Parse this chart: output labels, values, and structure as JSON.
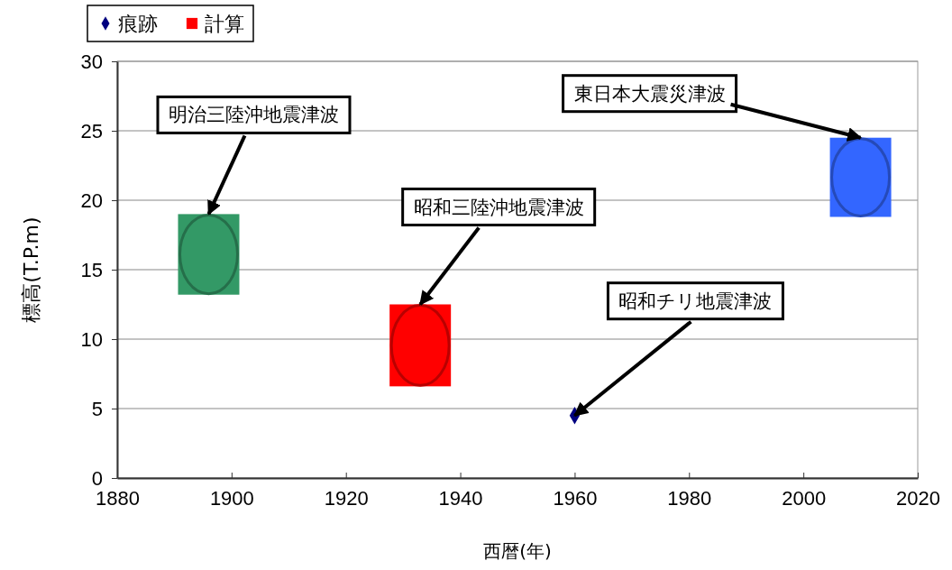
{
  "chart_data": {
    "type": "scatter",
    "xlabel": "西暦(年)",
    "ylabel": "標高(T.P.m)",
    "xlim": [
      1880,
      2020
    ],
    "xticks": [
      1880,
      1900,
      1920,
      1940,
      1960,
      1980,
      2000,
      2020
    ],
    "ylim": [
      0,
      30
    ],
    "yticks": [
      0,
      5,
      10,
      15,
      20,
      25,
      30
    ],
    "grid": "y",
    "legend": "top left",
    "series": [
      {
        "name": "痕跡",
        "marker": "diamond",
        "color": "#000080",
        "x": [
          1960
        ],
        "values": [
          4.5
        ]
      },
      {
        "name": "計算",
        "type": "bar",
        "color": "#ff0000",
        "colors": [
          "#339966",
          "#ff0000",
          "#3366ff"
        ],
        "x": [
          1896,
          1933,
          2010
        ],
        "base": [
          13.2,
          6.6,
          18.8
        ],
        "values": [
          5.8,
          5.9,
          5.7
        ]
      }
    ],
    "annotations": [
      {
        "text": "明治三陸沖地震津波",
        "x": 1896,
        "y": 19
      },
      {
        "text": "昭和三陸沖地震津波",
        "x": 1933,
        "y": 12.5
      },
      {
        "text": "昭和チリ地震津波",
        "x": 1960,
        "y": 4.5
      },
      {
        "text": "東日本大震災津波",
        "x": 2010,
        "y": 24.5
      }
    ]
  }
}
